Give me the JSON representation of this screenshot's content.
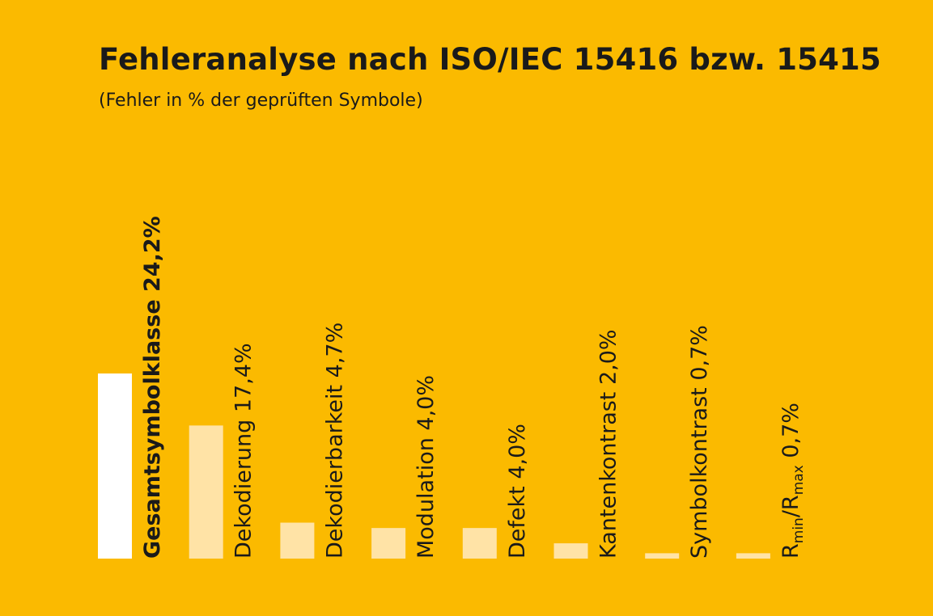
{
  "title": "Fehleranalyse nach ISO/IEC 15416 bzw. 15415",
  "subtitle": "(Fehler in % der geprüften Symbole)",
  "colors": {
    "background": "#FBBA00",
    "highlight_bar": "#FFFFFF",
    "bar": "#FFE3A6",
    "text": "#1A1A1A"
  },
  "chart_data": {
    "type": "bar",
    "orientation": "vertical",
    "title": "Fehleranalyse nach ISO/IEC 15416 bzw. 15415",
    "subtitle": "(Fehler in % der geprüften Symbole)",
    "ylim": [
      0,
      24.2
    ],
    "grid": false,
    "legend": "none",
    "categories": [
      "Gesamtsymbolklasse",
      "Dekodierung",
      "Dekodierbarkeit",
      "Modulation",
      "Defekt",
      "Kantenkontrast",
      "Symbolkontrast",
      "Rmin/Rmax"
    ],
    "values": [
      24.2,
      17.4,
      4.7,
      4.0,
      4.0,
      2.0,
      0.7,
      0.7
    ],
    "value_labels": [
      "24,2%",
      "17,4%",
      "4,7%",
      "4,0%",
      "4,0%",
      "2,0%",
      "0,7%",
      "0,7%"
    ],
    "highlighted_index": 0,
    "rmin_rmax_label": {
      "r": "R",
      "min": "min",
      "slash": "/",
      "max": "max"
    }
  }
}
